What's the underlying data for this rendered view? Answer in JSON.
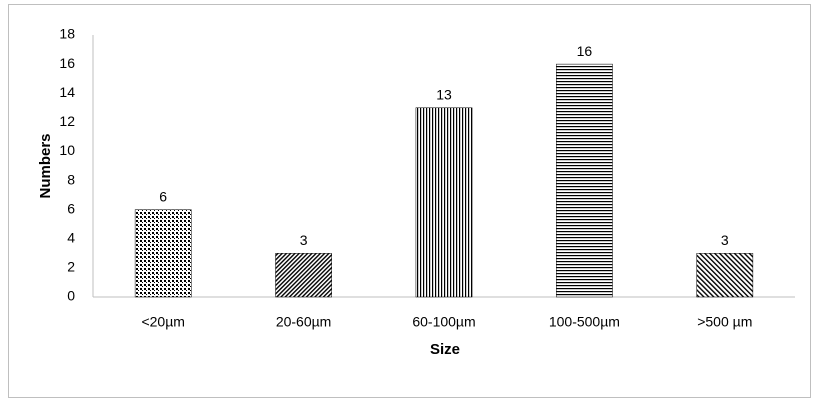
{
  "chart_data": {
    "type": "bar",
    "x_label": "Size",
    "y_label": "Numbers",
    "categories": [
      "<20µm",
      "20-60µm",
      "60-100µm",
      "100-500µm",
      ">500 µm"
    ],
    "values": [
      6,
      3,
      13,
      16,
      3
    ],
    "color": "#000000",
    "ylim": [
      0,
      18
    ],
    "yticks": [
      0,
      2,
      4,
      6,
      8,
      10,
      12,
      14,
      16,
      18
    ],
    "grid": false
  }
}
